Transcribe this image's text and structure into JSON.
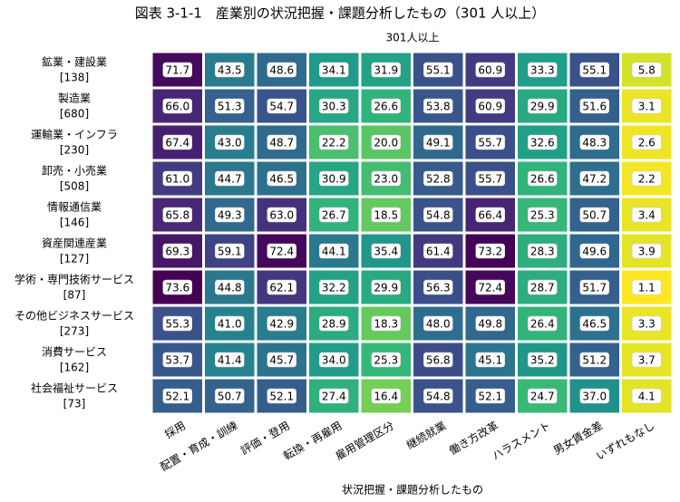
{
  "chart_data": {
    "type": "heatmap",
    "title": "図表 3-1-1　産業別の状況把握・課題分析したもの（301 人以上）",
    "subtitle": "301人以上",
    "x_label": "状況把握・課題分析したもの",
    "colormap": "viridis_r",
    "columns": [
      "採用",
      "配置・育成・訓練",
      "評価・登用",
      "転換・再雇用",
      "雇用管理区分",
      "継続就業",
      "働き方改革",
      "ハラスメント",
      "男女賃金差",
      "いずれもなし"
    ],
    "rows": [
      {
        "label": "鉱業・建設業",
        "count": "[138]"
      },
      {
        "label": "製造業",
        "count": "[680]"
      },
      {
        "label": "運輸業・インフラ",
        "count": "[230]"
      },
      {
        "label": "卸売・小売業",
        "count": "[508]"
      },
      {
        "label": "情報通信業",
        "count": "[146]"
      },
      {
        "label": "資産関連産業",
        "count": "[127]"
      },
      {
        "label": "学術・専門技術サービス",
        "count": "[87]"
      },
      {
        "label": "その他ビジネスサービス",
        "count": "[273]"
      },
      {
        "label": "消費サービス",
        "count": "[162]"
      },
      {
        "label": "社会福祉サービス",
        "count": "[73]"
      }
    ],
    "values": [
      [
        71.7,
        43.5,
        48.6,
        34.1,
        31.9,
        55.1,
        60.9,
        33.3,
        55.1,
        5.8
      ],
      [
        66.0,
        51.3,
        54.7,
        30.3,
        26.6,
        53.8,
        60.9,
        29.9,
        51.6,
        3.1
      ],
      [
        67.4,
        43.0,
        48.7,
        22.2,
        20.0,
        49.1,
        55.7,
        32.6,
        48.3,
        2.6
      ],
      [
        61.0,
        44.7,
        46.5,
        30.9,
        23.0,
        52.8,
        55.7,
        26.6,
        47.2,
        2.2
      ],
      [
        65.8,
        49.3,
        63.0,
        26.7,
        18.5,
        54.8,
        66.4,
        25.3,
        50.7,
        3.4
      ],
      [
        69.3,
        59.1,
        72.4,
        44.1,
        35.4,
        61.4,
        73.2,
        28.3,
        49.6,
        3.9
      ],
      [
        73.6,
        44.8,
        62.1,
        32.2,
        29.9,
        56.3,
        72.4,
        28.7,
        51.7,
        1.1
      ],
      [
        55.3,
        41.0,
        42.9,
        28.9,
        18.3,
        48.0,
        49.8,
        26.4,
        46.5,
        3.3
      ],
      [
        53.7,
        41.4,
        45.7,
        34.0,
        25.3,
        56.8,
        45.1,
        35.2,
        51.2,
        3.7
      ],
      [
        52.1,
        50.7,
        52.1,
        27.4,
        16.4,
        54.8,
        52.1,
        24.7,
        37.0,
        4.1
      ]
    ],
    "value_labels": [
      [
        "71.7",
        "43.5",
        "48.6",
        "34.1",
        "31.9",
        "55.1",
        "60.9",
        "33.3",
        "55.1",
        "5.8"
      ],
      [
        "66.0",
        "51.3",
        "54.7",
        "30.3",
        "26.6",
        "53.8",
        "60.9",
        "29.9",
        "51.6",
        "3.1"
      ],
      [
        "67.4",
        "43.0",
        "48.7",
        "22.2",
        "20.0",
        "49.1",
        "55.7",
        "32.6",
        "48.3",
        "2.6"
      ],
      [
        "61.0",
        "44.7",
        "46.5",
        "30.9",
        "23.0",
        "52.8",
        "55.7",
        "26.6",
        "47.2",
        "2.2"
      ],
      [
        "65.8",
        "49.3",
        "63.0",
        "26.7",
        "18.5",
        "54.8",
        "66.4",
        "25.3",
        "50.7",
        "3.4"
      ],
      [
        "69.3",
        "59.1",
        "72.4",
        "44.1",
        "35.4",
        "61.4",
        "73.2",
        "28.3",
        "49.6",
        "3.9"
      ],
      [
        "73.6",
        "44.8",
        "62.1",
        "32.2",
        "29.9",
        "56.3",
        "72.4",
        "28.7",
        "51.7",
        "1.1"
      ],
      [
        "55.3",
        "41.0",
        "42.9",
        "28.9",
        "18.3",
        "48.0",
        "49.8",
        "26.4",
        "46.5",
        "3.3"
      ],
      [
        "53.7",
        "41.4",
        "45.7",
        "34.0",
        "25.3",
        "56.8",
        "45.1",
        "35.2",
        "51.2",
        "3.7"
      ],
      [
        "52.1",
        "50.7",
        "52.1",
        "27.4",
        "16.4",
        "54.8",
        "52.1",
        "24.7",
        "37.0",
        "4.1"
      ]
    ]
  }
}
